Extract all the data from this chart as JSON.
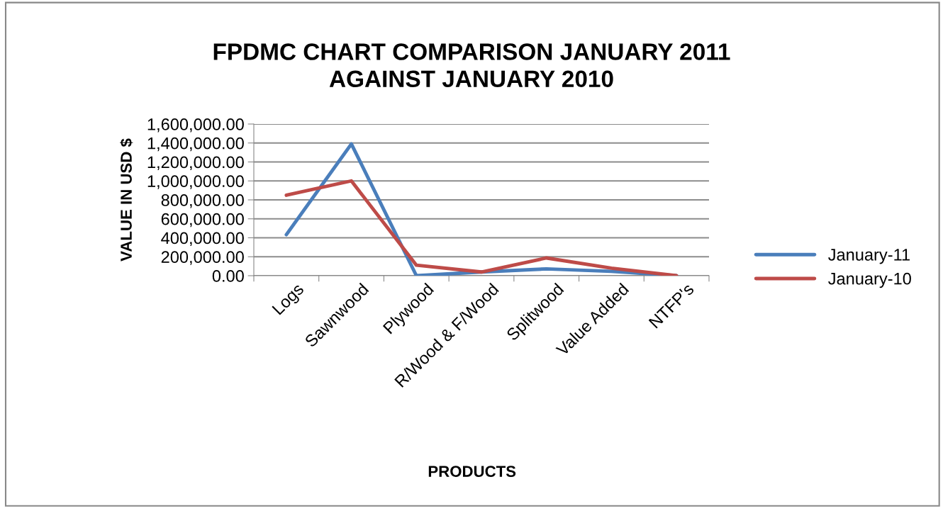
{
  "chart_data": {
    "type": "line",
    "title": "FPDMC CHART COMPARISON JANUARY 2011\nAGAINST JANUARY 2010",
    "xlabel": "PRODUCTS",
    "ylabel": "VALUE IN USD $",
    "categories": [
      "Logs",
      "Sawnwood",
      "Plywood",
      "R/Wood & F/Wood",
      "Splitwood",
      "Value Added",
      "NTFP's"
    ],
    "series": [
      {
        "name": "January-11",
        "color": "#4a7ebb",
        "values": [
          433000,
          1390000,
          0,
          39000,
          72000,
          46000,
          0
        ]
      },
      {
        "name": "January-10",
        "color": "#be4b48",
        "values": [
          849000,
          1000000,
          111000,
          39000,
          187000,
          79000,
          0
        ]
      }
    ],
    "ylim": [
      0,
      1600000
    ],
    "yticks": [
      {
        "value": 0,
        "label": "0.00"
      },
      {
        "value": 200000,
        "label": "200,000.00"
      },
      {
        "value": 400000,
        "label": "400,000.00"
      },
      {
        "value": 600000,
        "label": "600,000.00"
      },
      {
        "value": 800000,
        "label": "800,000.00"
      },
      {
        "value": 1000000,
        "label": "1,000,000.00"
      },
      {
        "value": 1200000,
        "label": "1,200,000.00"
      },
      {
        "value": 1400000,
        "label": "1,400,000.00"
      },
      {
        "value": 1600000,
        "label": "1,600,000.00"
      }
    ],
    "grid": "y",
    "legend": "right",
    "marker": "none",
    "line_style": "solid"
  }
}
